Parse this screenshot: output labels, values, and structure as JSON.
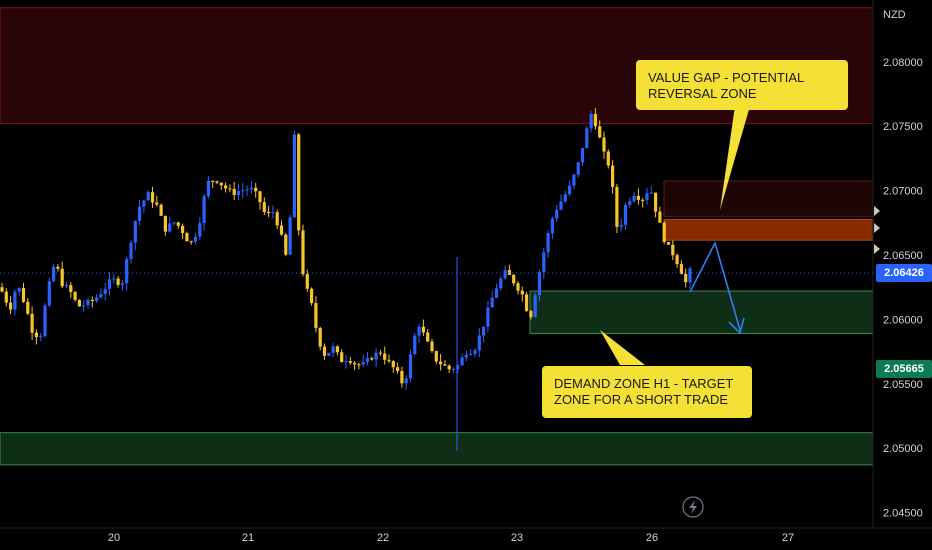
{
  "currency_label": "NZD",
  "callouts": {
    "value_gap": "VALUE GAP - POTENTIAL\nREVERSAL ZONE",
    "demand_zone": "DEMAND ZONE H1 - TARGET\nZONE FOR A SHORT TRADE"
  },
  "current_price": "2.06426",
  "secondary_price": "2.05665",
  "colors": {
    "bull": "#2962ff",
    "bear": "#f7c52b",
    "value_gap": "#8a2a00",
    "demand": "#0f2e16",
    "supply": "#2a0508",
    "callout": "#f5e135",
    "current_price_tag": "#2962ff",
    "secondary_price_tag": "#0b7a55"
  },
  "chart_data": {
    "type": "candlestick",
    "title": "",
    "xlabel": "",
    "ylabel": "",
    "ylim": [
      2.0438,
      2.0848
    ],
    "y_ticks": [
      "2.08000",
      "2.07500",
      "2.07000",
      "2.06500",
      "2.06000",
      "2.05500",
      "2.05000",
      "2.04500"
    ],
    "x_ticks": [
      "20",
      "21",
      "22",
      "23",
      "26",
      "27"
    ],
    "close_path": [
      [
        0,
        2.0625
      ],
      [
        10,
        2.0608
      ],
      [
        17,
        2.0628
      ],
      [
        25,
        2.0612
      ],
      [
        32,
        2.0592
      ],
      [
        40,
        2.0585
      ],
      [
        47,
        2.062
      ],
      [
        55,
        2.0645
      ],
      [
        62,
        2.0628
      ],
      [
        70,
        2.0622
      ],
      [
        78,
        2.061
      ],
      [
        86,
        2.0612
      ],
      [
        94,
        2.0615
      ],
      [
        102,
        2.0622
      ],
      [
        112,
        2.0631
      ],
      [
        122,
        2.0628
      ],
      [
        131,
        2.0662
      ],
      [
        138,
        2.0686
      ],
      [
        148,
        2.0697
      ],
      [
        157,
        2.0688
      ],
      [
        165,
        2.067
      ],
      [
        175,
        2.0676
      ],
      [
        183,
        2.0668
      ],
      [
        190,
        2.0658
      ],
      [
        198,
        2.067
      ],
      [
        207,
        2.0706
      ],
      [
        216,
        2.0709
      ],
      [
        224,
        2.0703
      ],
      [
        232,
        2.0698
      ],
      [
        240,
        2.07
      ],
      [
        250,
        2.0702
      ],
      [
        258,
        2.0695
      ],
      [
        266,
        2.068
      ],
      [
        274,
        2.0684
      ],
      [
        282,
        2.0662
      ],
      [
        288,
        2.0642
      ],
      [
        294,
        2.0748
      ],
      [
        300,
        2.0648
      ],
      [
        306,
        2.0625
      ],
      [
        312,
        2.061
      ],
      [
        318,
        2.0585
      ],
      [
        325,
        2.0572
      ],
      [
        333,
        2.0578
      ],
      [
        341,
        2.0568
      ],
      [
        348,
        2.057
      ],
      [
        356,
        2.0565
      ],
      [
        364,
        2.0565
      ],
      [
        372,
        2.0571
      ],
      [
        380,
        2.0575
      ],
      [
        388,
        2.0567
      ],
      [
        396,
        2.056
      ],
      [
        404,
        2.0548
      ],
      [
        410,
        2.057
      ],
      [
        418,
        2.0598
      ],
      [
        426,
        2.0584
      ],
      [
        434,
        2.057
      ],
      [
        442,
        2.0565
      ],
      [
        450,
        2.0561
      ],
      [
        458,
        2.0564
      ],
      [
        466,
        2.0575
      ],
      [
        474,
        2.0576
      ],
      [
        482,
        2.0592
      ],
      [
        490,
        2.0612
      ],
      [
        498,
        2.0628
      ],
      [
        506,
        2.0637
      ],
      [
        514,
        2.0629
      ],
      [
        522,
        2.062
      ],
      [
        530,
        2.06
      ],
      [
        538,
        2.0632
      ],
      [
        546,
        2.066
      ],
      [
        554,
        2.0683
      ],
      [
        562,
        2.0693
      ],
      [
        570,
        2.0703
      ],
      [
        578,
        2.072
      ],
      [
        586,
        2.0745
      ],
      [
        592,
        2.0762
      ],
      [
        598,
        2.0745
      ],
      [
        604,
        2.0728
      ],
      [
        610,
        2.0718
      ],
      [
        618,
        2.0665
      ],
      [
        626,
        2.069
      ],
      [
        634,
        2.0698
      ],
      [
        642,
        2.0693
      ],
      [
        650,
        2.0703
      ],
      [
        658,
        2.0678
      ],
      [
        666,
        2.0658
      ],
      [
        674,
        2.065
      ],
      [
        680,
        2.064
      ],
      [
        686,
        2.0628
      ],
      [
        692,
        2.0642
      ]
    ],
    "zones": [
      {
        "name": "supply zone",
        "from": 2.0752,
        "to": 2.0842
      },
      {
        "name": "value gap",
        "from": 2.06615,
        "to": 2.06775
      },
      {
        "name": "demand zone H1",
        "from": 2.0589,
        "to": 2.0622
      },
      {
        "name": "lower demand zone",
        "from": 2.0487,
        "to": 2.0512
      }
    ],
    "grid": false
  }
}
